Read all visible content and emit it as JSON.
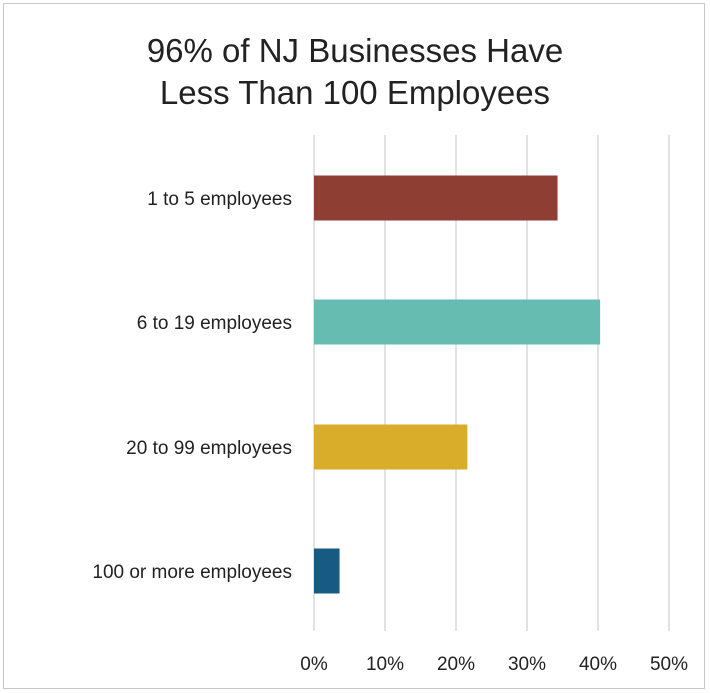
{
  "chart_data": {
    "type": "bar",
    "orientation": "horizontal",
    "title_lines": [
      "96% of NJ Businesses Have",
      "Less Than 100 Employees"
    ],
    "categories": [
      "1 to 5 employees",
      "6 to 19 employees",
      "20 to 99 employees",
      "100 or more employees"
    ],
    "values": [
      34.3,
      40.3,
      21.6,
      3.6
    ],
    "value_unit": "%",
    "colors": [
      "#8e3e33",
      "#66bcb1",
      "#d9ad29",
      "#175b83"
    ],
    "xlim": [
      0,
      50
    ],
    "x_ticks": [
      "0%",
      "10%",
      "20%",
      "30%",
      "40%",
      "50%"
    ],
    "grid": "vertical",
    "legend": "none"
  }
}
